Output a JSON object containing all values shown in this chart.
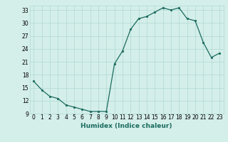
{
  "x": [
    0,
    1,
    2,
    3,
    4,
    5,
    6,
    7,
    8,
    9,
    10,
    11,
    12,
    13,
    14,
    15,
    16,
    17,
    18,
    19,
    20,
    21,
    22,
    23
  ],
  "y": [
    16.5,
    14.5,
    13.0,
    12.5,
    11.0,
    10.5,
    10.0,
    9.5,
    9.5,
    9.5,
    20.5,
    23.5,
    28.5,
    31.0,
    31.5,
    32.5,
    33.5,
    33.0,
    33.5,
    31.0,
    30.5,
    25.5,
    22.0,
    23.0
  ],
  "line_color": "#1a6b5e",
  "marker": "o",
  "marker_size": 1.8,
  "bg_color": "#d4eeea",
  "grid_color": "#afd9d3",
  "xlabel": "Humidex (Indice chaleur)",
  "xlim": [
    -0.5,
    23.5
  ],
  "ylim": [
    9,
    34
  ],
  "yticks": [
    9,
    12,
    15,
    18,
    21,
    24,
    27,
    30,
    33
  ],
  "xtick_labels": [
    "0",
    "1",
    "2",
    "3",
    "4",
    "5",
    "6",
    "7",
    "8",
    "9",
    "10",
    "11",
    "12",
    "13",
    "14",
    "15",
    "16",
    "17",
    "18",
    "19",
    "20",
    "21",
    "22",
    "23"
  ],
  "tick_fontsize": 5.5,
  "xlabel_fontsize": 6.5
}
